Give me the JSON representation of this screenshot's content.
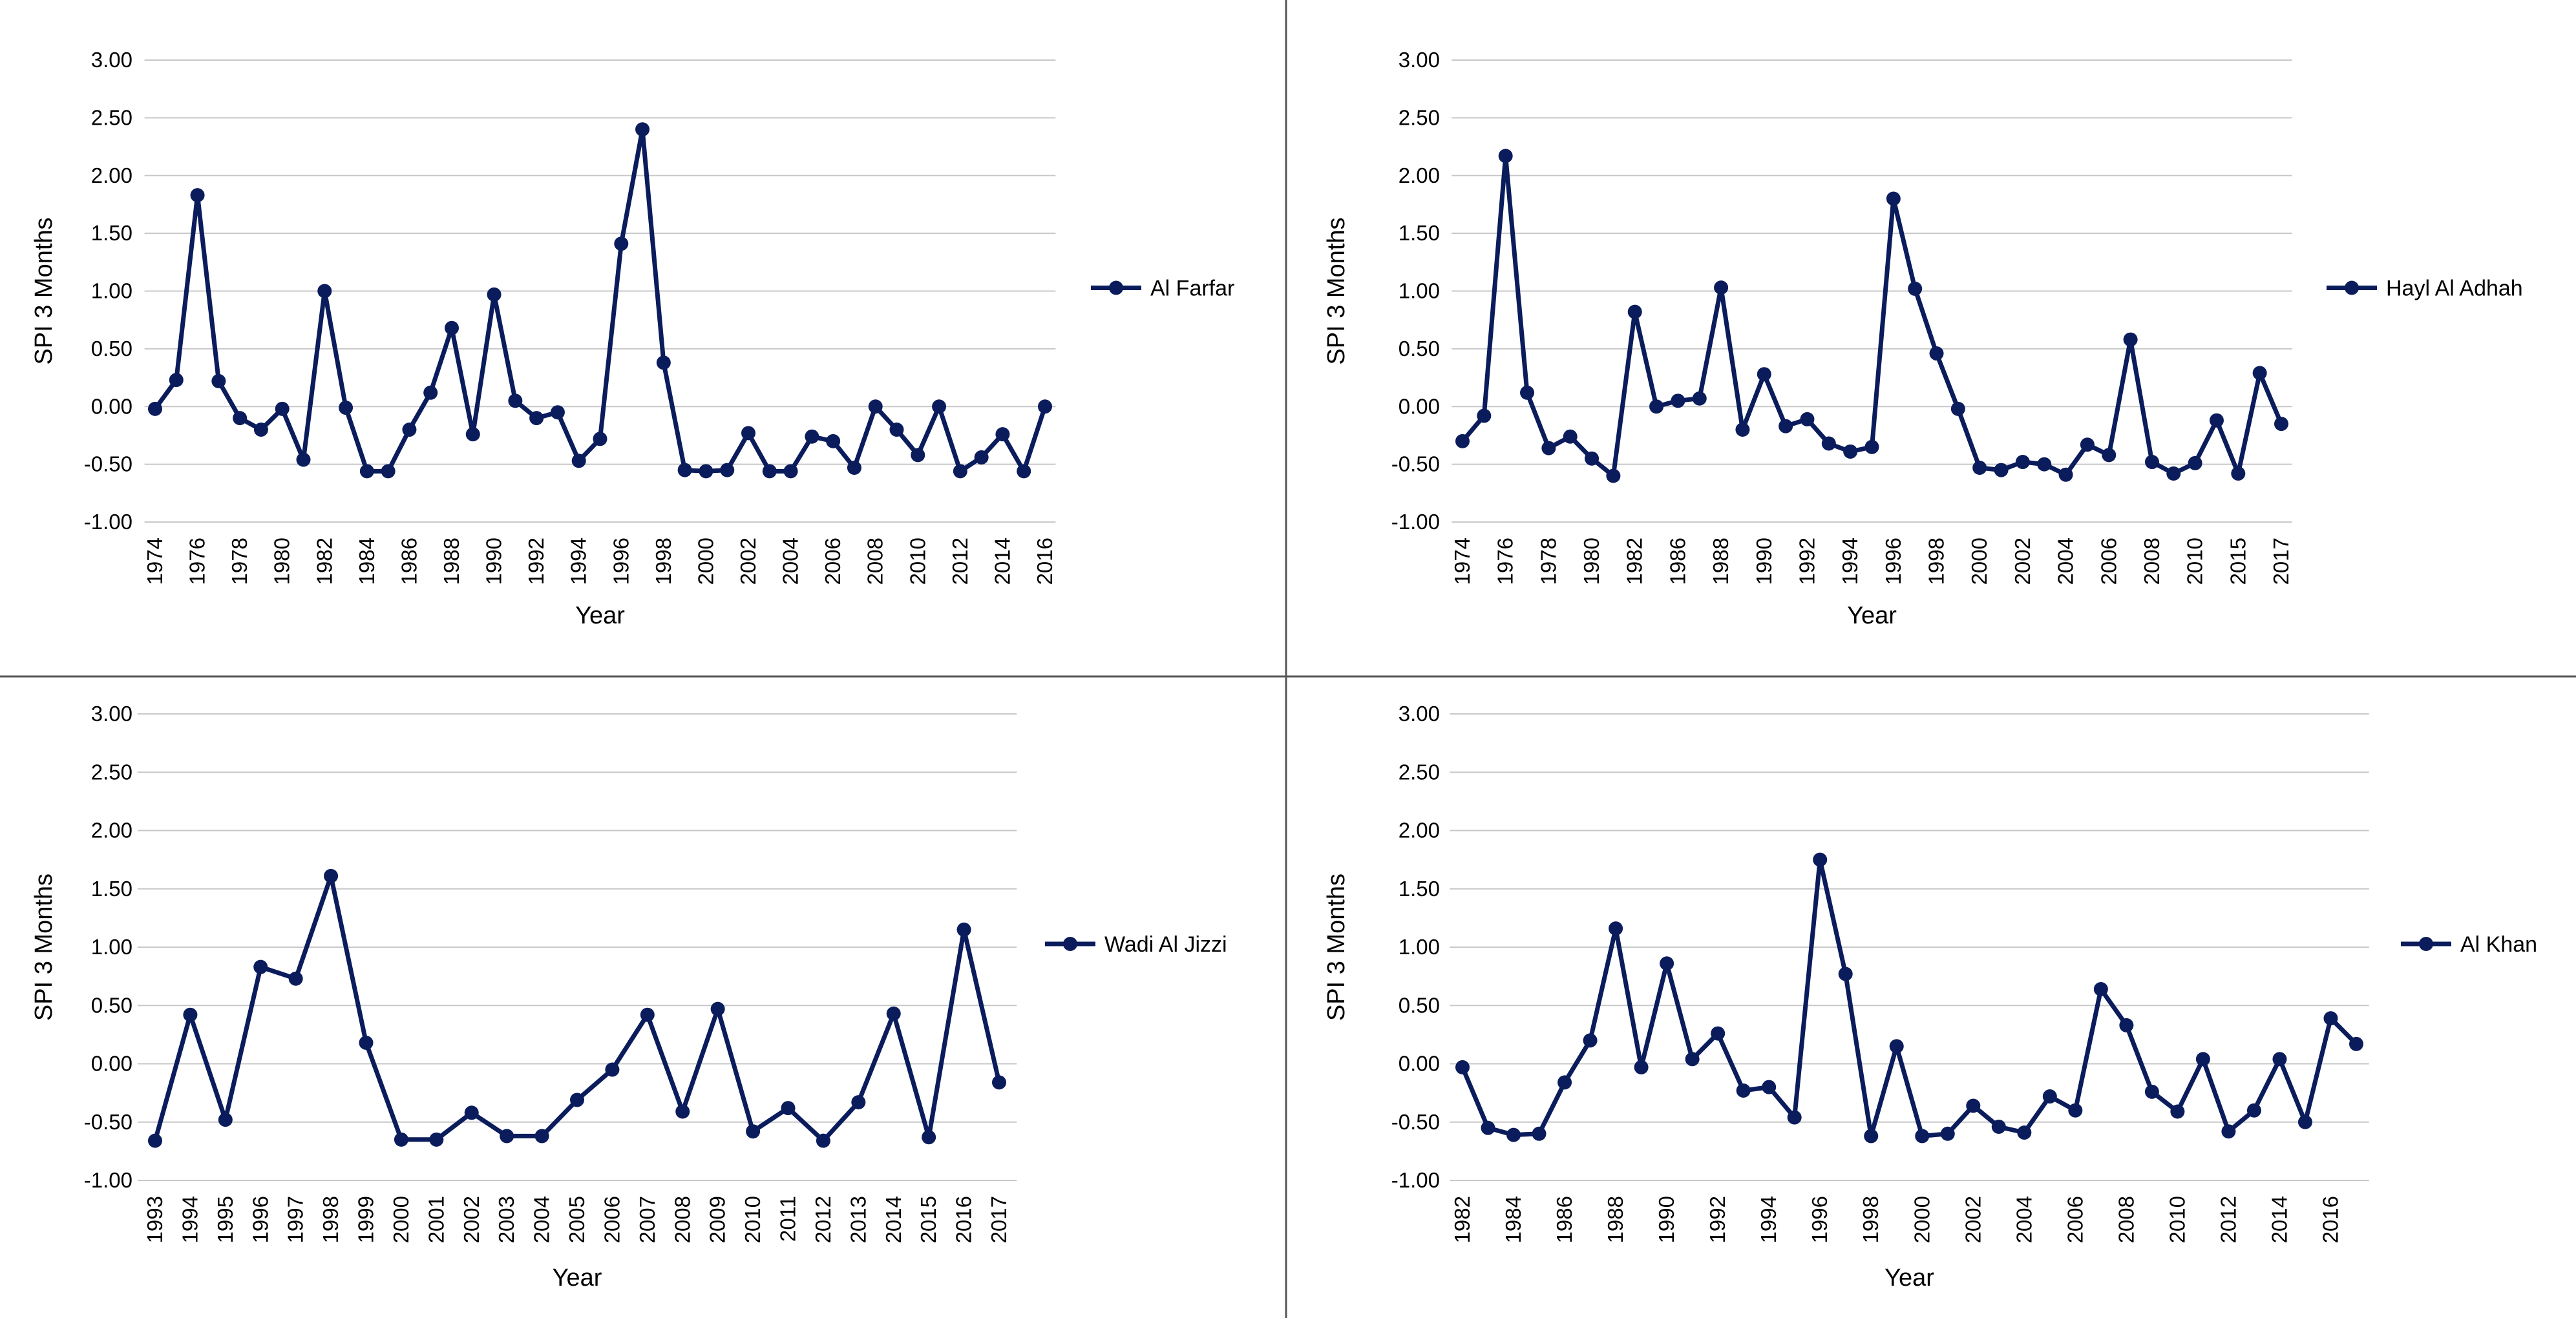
{
  "colors": {
    "series": "#0b1c5c",
    "grid": "#c8c8c8",
    "divider": "#555555",
    "text": "#000000"
  },
  "chart_data": [
    {
      "type": "line",
      "position": "top-left",
      "title": "",
      "ylabel": "SPI 3 Months",
      "xlabel": "Year",
      "ylim": [
        -1.0,
        3.0
      ],
      "yticks": [
        "3.00",
        "2.50",
        "2.00",
        "1.50",
        "1.00",
        "0.50",
        "0.00",
        "-0.50",
        "-1.00"
      ],
      "legend": "Al Farfar",
      "legend_position": "right",
      "x": [
        "1974",
        "1975",
        "1976",
        "1977",
        "1978",
        "1979",
        "1980",
        "1981",
        "1982",
        "1983",
        "1984",
        "1985",
        "1986",
        "1987",
        "1988",
        "1989",
        "1990",
        "1991",
        "1992",
        "1993",
        "1994",
        "1995",
        "1996",
        "1997",
        "1998",
        "1999",
        "2000",
        "2001",
        "2002",
        "2003",
        "2004",
        "2005",
        "2006",
        "2007",
        "2008",
        "2009",
        "2010",
        "2011",
        "2012",
        "2013",
        "2014",
        "2015",
        "2016"
      ],
      "tick_labels": [
        "1974",
        "1976",
        "1978",
        "1980",
        "1982",
        "1984",
        "1986",
        "1988",
        "1990",
        "1992",
        "1994",
        "1996",
        "1998",
        "2000",
        "2002",
        "2004",
        "2006",
        "2008",
        "2010",
        "2012",
        "2014",
        "2016"
      ],
      "values": [
        -0.02,
        0.23,
        1.83,
        0.22,
        -0.1,
        -0.2,
        -0.02,
        -0.46,
        1.0,
        -0.01,
        -0.56,
        -0.56,
        -0.2,
        0.12,
        0.68,
        -0.24,
        0.97,
        0.05,
        -0.1,
        -0.05,
        -0.47,
        -0.28,
        1.41,
        2.4,
        0.38,
        -0.55,
        -0.56,
        -0.55,
        -0.23,
        -0.56,
        -0.56,
        -0.26,
        -0.3,
        -0.53,
        0.0,
        -0.2,
        -0.42,
        0.0,
        -0.56,
        -0.44,
        -0.24,
        -0.56,
        0.0
      ]
    },
    {
      "type": "line",
      "position": "top-right",
      "title": "",
      "ylabel": "SPI 3 Months",
      "xlabel": "Year",
      "ylim": [
        -1.0,
        3.0
      ],
      "yticks": [
        "3.00",
        "2.50",
        "2.00",
        "1.50",
        "1.00",
        "0.50",
        "0.00",
        "-0.50",
        "-1.00"
      ],
      "legend": "Hayl Al Adhah",
      "legend_position": "right",
      "x": [
        "1974",
        "1975",
        "1976",
        "1977",
        "1978",
        "1979",
        "1980",
        "1981",
        "1982",
        "1983",
        "1986",
        "1987",
        "1988",
        "1989",
        "1990",
        "1991",
        "1992",
        "1993",
        "1994",
        "1995",
        "1996",
        "1997",
        "1998",
        "1999",
        "2000",
        "2001",
        "2002",
        "2003",
        "2004",
        "2005",
        "2006",
        "2007",
        "2008",
        "2009",
        "2010",
        "2011",
        "2015",
        "2016",
        "2017"
      ],
      "tick_labels": [
        "1974",
        "1976",
        "1978",
        "1980",
        "1982",
        "1986",
        "1988",
        "1990",
        "1992",
        "1994",
        "1996",
        "1998",
        "2000",
        "2002",
        "2004",
        "2006",
        "2008",
        "2010",
        "2015",
        "2017"
      ],
      "values": [
        -0.3,
        -0.08,
        2.17,
        0.12,
        -0.36,
        -0.26,
        -0.45,
        -0.6,
        0.82,
        0.0,
        0.05,
        0.07,
        1.03,
        -0.2,
        0.28,
        -0.17,
        -0.11,
        -0.32,
        -0.39,
        -0.35,
        1.8,
        1.02,
        0.46,
        -0.02,
        -0.53,
        -0.55,
        -0.48,
        -0.5,
        -0.59,
        -0.33,
        -0.42,
        0.58,
        -0.48,
        -0.58,
        -0.49,
        -0.12,
        -0.58,
        0.29,
        -0.15
      ]
    },
    {
      "type": "line",
      "position": "bottom-left",
      "title": "",
      "ylabel": "SPI 3 Months",
      "xlabel": "Year",
      "ylim": [
        -1.0,
        3.0
      ],
      "yticks": [
        "3.00",
        "2.50",
        "2.00",
        "1.50",
        "1.00",
        "0.50",
        "0.00",
        "-0.50",
        "-1.00"
      ],
      "legend": "Wadi Al Jizzi",
      "legend_position": "right",
      "x": [
        "1993",
        "1994",
        "1995",
        "1996",
        "1997",
        "1998",
        "1999",
        "2000",
        "2001",
        "2002",
        "2003",
        "2004",
        "2005",
        "2006",
        "2007",
        "2008",
        "2009",
        "2010",
        "2011",
        "2012",
        "2013",
        "2014",
        "2015",
        "2016",
        "2017"
      ],
      "tick_labels": [
        "1993",
        "1994",
        "1995",
        "1996",
        "1997",
        "1998",
        "1999",
        "2000",
        "2001",
        "2002",
        "2003",
        "2004",
        "2005",
        "2006",
        "2007",
        "2008",
        "2009",
        "2010",
        "2011",
        "2012",
        "2013",
        "2014",
        "2015",
        "2016",
        "2017"
      ],
      "values": [
        -0.66,
        0.42,
        -0.48,
        0.83,
        0.73,
        1.61,
        0.18,
        -0.65,
        -0.65,
        -0.42,
        -0.62,
        -0.62,
        -0.31,
        -0.05,
        0.42,
        -0.41,
        0.47,
        -0.58,
        -0.38,
        -0.66,
        -0.33,
        0.43,
        -0.63,
        1.15,
        -0.16
      ]
    },
    {
      "type": "line",
      "position": "bottom-right",
      "title": "",
      "ylabel": "SPI 3 Months",
      "xlabel": "Year",
      "ylim": [
        -1.0,
        3.0
      ],
      "yticks": [
        "3.00",
        "2.50",
        "2.00",
        "1.50",
        "1.00",
        "0.50",
        "0.00",
        "-0.50",
        "-1.00"
      ],
      "legend": "Al Khan",
      "legend_position": "right",
      "x": [
        "1982",
        "1983",
        "1984",
        "1985",
        "1986",
        "1987",
        "1988",
        "1989",
        "1990",
        "1991",
        "1992",
        "1993",
        "1994",
        "1995",
        "1996",
        "1997",
        "1998",
        "1999",
        "2000",
        "2001",
        "2002",
        "2003",
        "2004",
        "2005",
        "2006",
        "2007",
        "2008",
        "2009",
        "2010",
        "2011",
        "2012",
        "2013",
        "2014",
        "2015",
        "2016",
        "2017"
      ],
      "tick_labels": [
        "1982",
        "1984",
        "1986",
        "1988",
        "1990",
        "1992",
        "1994",
        "1996",
        "1998",
        "2000",
        "2002",
        "2004",
        "2006",
        "2008",
        "2010",
        "2012",
        "2014",
        "2016"
      ],
      "values": [
        -0.03,
        -0.55,
        -0.61,
        -0.6,
        -0.16,
        0.2,
        1.16,
        -0.03,
        0.86,
        0.04,
        0.26,
        -0.23,
        -0.2,
        -0.46,
        1.75,
        0.77,
        -0.62,
        0.15,
        -0.62,
        -0.6,
        -0.36,
        -0.54,
        -0.59,
        -0.28,
        -0.4,
        0.64,
        0.33,
        -0.24,
        -0.41,
        0.04,
        -0.58,
        -0.4,
        0.04,
        -0.5,
        0.39,
        0.17
      ]
    }
  ]
}
